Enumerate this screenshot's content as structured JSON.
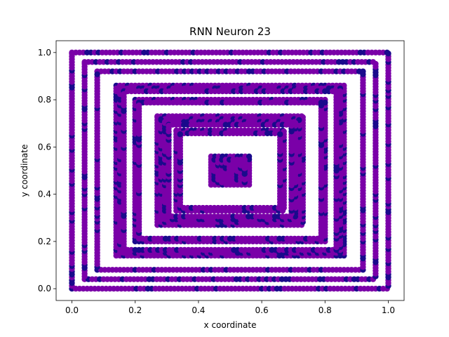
{
  "chart_data": {
    "type": "scatter",
    "title": "RNN Neuron 23",
    "xlabel": "x coordinate",
    "ylabel": "y coordinate",
    "xlim": [
      -0.05,
      1.05
    ],
    "ylim": [
      -0.05,
      1.05
    ],
    "xticks": [
      "0.0",
      "0.2",
      "0.4",
      "0.6",
      "0.8",
      "1.0"
    ],
    "yticks": [
      "0.0",
      "0.2",
      "0.4",
      "0.6",
      "0.8",
      "1.0"
    ],
    "grid": false,
    "colors": {
      "primary": "#7a00a8",
      "secondary": "#1a0a8c"
    },
    "rings": [
      {
        "x": [
          0.0,
          1.0
        ],
        "y": [
          0.0,
          1.0
        ],
        "bands": 1
      },
      {
        "x": [
          0.04,
          0.96
        ],
        "y": [
          0.04,
          0.96
        ],
        "bands": 1
      },
      {
        "x": [
          0.08,
          0.92
        ],
        "y": [
          0.08,
          0.92
        ],
        "bands": 1
      },
      {
        "x": [
          0.14,
          0.86
        ],
        "y": [
          0.14,
          0.86
        ],
        "bands": 3
      },
      {
        "x": [
          0.2,
          0.8
        ],
        "y": [
          0.2,
          0.8
        ],
        "bands": 2
      },
      {
        "x": [
          0.27,
          0.73
        ],
        "y": [
          0.27,
          0.73
        ],
        "bands": 4
      },
      {
        "x": [
          0.33,
          0.67
        ],
        "y": [
          0.33,
          0.67
        ],
        "bands": 2
      },
      {
        "x": [
          0.44,
          0.56
        ],
        "y": [
          0.44,
          0.56
        ],
        "bands": 1
      }
    ]
  }
}
